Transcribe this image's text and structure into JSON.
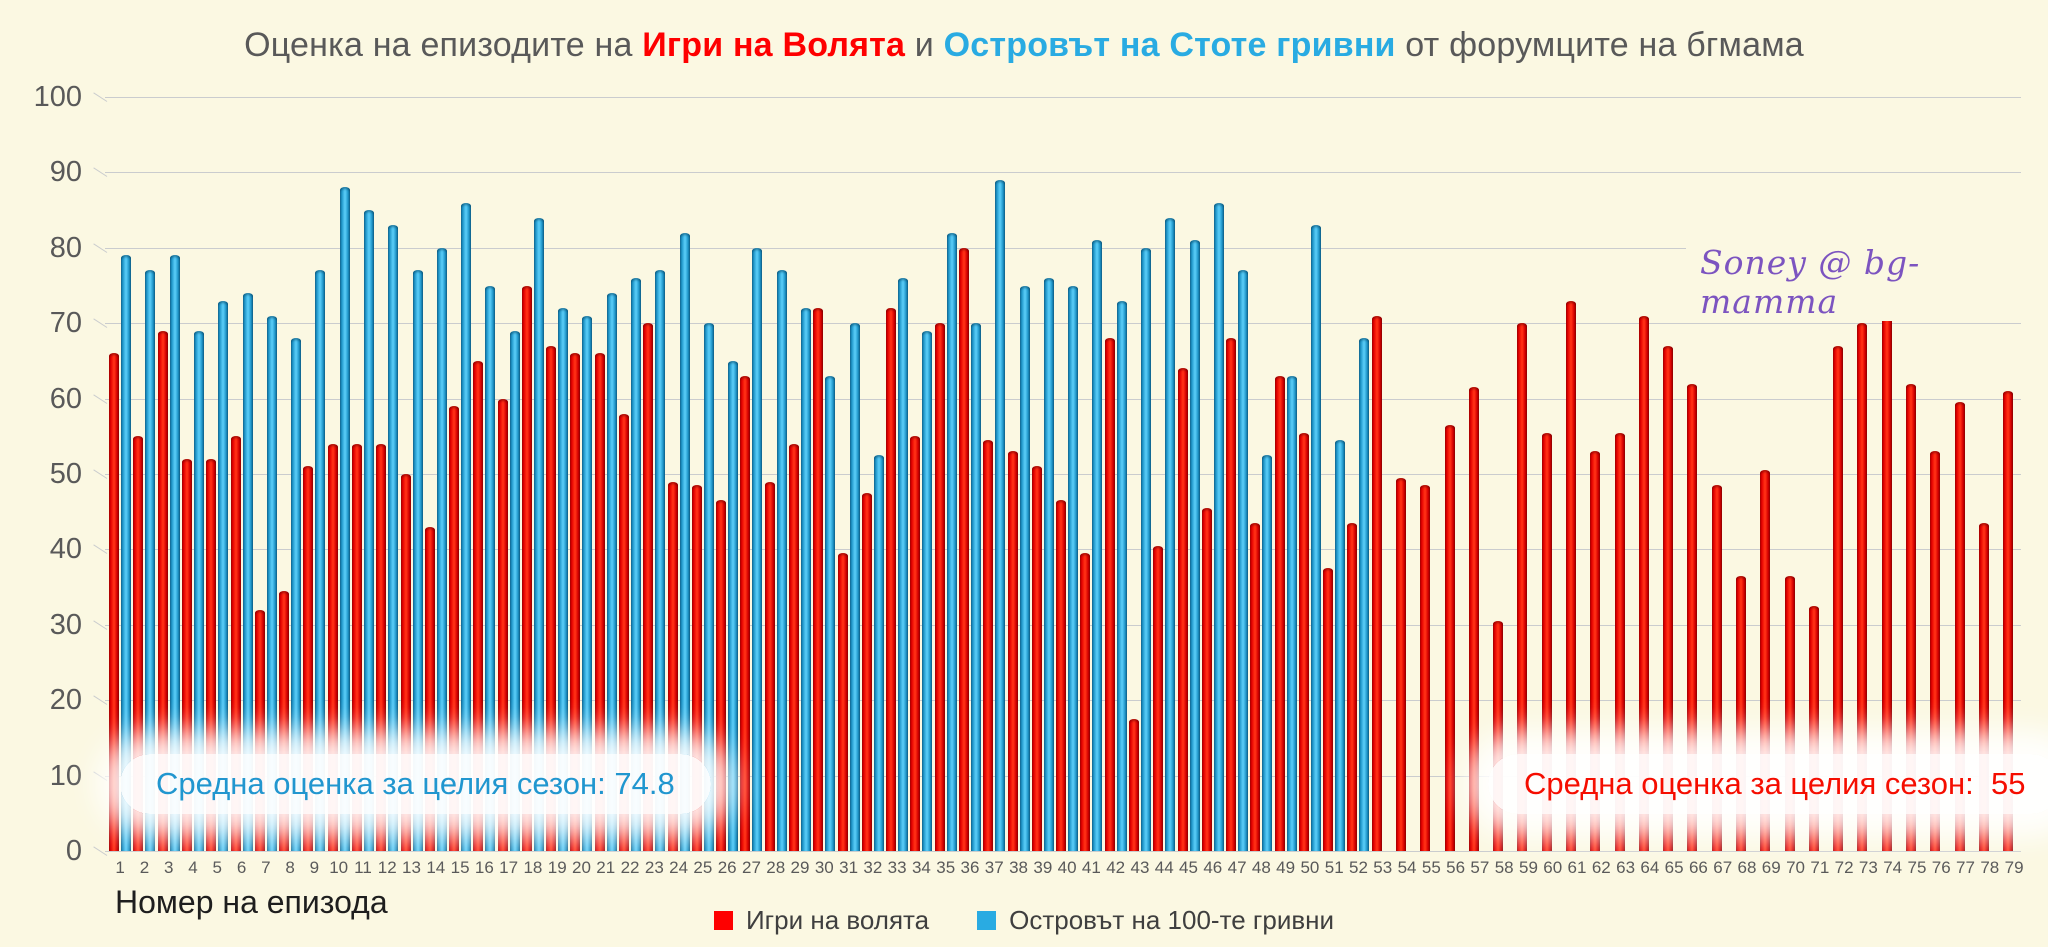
{
  "title": {
    "prefix": "Оценка на епизодите на ",
    "show1": "Игри на Волята",
    "mid": " и ",
    "show2": "Островът на Стоте гривни",
    "suffix": " от форумците на бгмама"
  },
  "watermark": "Soney @ bg-mamma",
  "annotations": {
    "island_avg": "Средна оценка за целия сезон: 74.8",
    "games_avg": "Средна оценка за целия сезон:  55"
  },
  "labels": {
    "x_axis": "Номер на епизода"
  },
  "legend": [
    {
      "label": "Игри на волята",
      "color": "#fe0000"
    },
    {
      "label": "Островът на 100-те гривни",
      "color": "#29abe2"
    }
  ],
  "colors": {
    "background": "#fbf8e2",
    "gridline": "#caccce",
    "axis_text": "#595959",
    "games_red": "#fe0000",
    "island_blue": "#29abe2",
    "caption_blue": "#2196cf",
    "caption_red": "#f50d00",
    "watermark_purple": "#7c54c0"
  },
  "chart_data": {
    "type": "bar",
    "title": "Оценка на епизодите на Игри на Волята и Островът на Стоте гривни от форумците на бгмама",
    "xlabel": "Номер на епизода",
    "ylabel": "",
    "ylim": [
      0,
      100
    ],
    "yticks": [
      100,
      90,
      80,
      70,
      60,
      50,
      40,
      30,
      20,
      10,
      0
    ],
    "grid": true,
    "legend_position": "bottom",
    "categories": [
      1,
      2,
      3,
      4,
      5,
      6,
      7,
      8,
      9,
      10,
      11,
      12,
      13,
      14,
      15,
      16,
      17,
      18,
      19,
      20,
      21,
      22,
      23,
      24,
      25,
      26,
      27,
      28,
      29,
      30,
      31,
      32,
      33,
      34,
      35,
      36,
      37,
      38,
      39,
      40,
      41,
      42,
      43,
      44,
      45,
      46,
      47,
      48,
      49,
      50,
      51,
      52,
      53,
      54,
      55,
      56,
      57,
      58,
      59,
      60,
      61,
      62,
      63,
      64,
      65,
      66,
      67,
      68,
      69,
      70,
      71,
      72,
      73,
      74,
      75,
      76,
      77,
      78,
      79
    ],
    "series": [
      {
        "name": "Игри на волята",
        "color": "#fe0000",
        "average": 55,
        "values": [
          66,
          55,
          69,
          52,
          52,
          55,
          32,
          34.5,
          51,
          54,
          54,
          54,
          50,
          43,
          59,
          65,
          60,
          75,
          67,
          66,
          66,
          58,
          70,
          49,
          48.5,
          46.5,
          63,
          49,
          54,
          72,
          39.5,
          47.5,
          72,
          55,
          70,
          80,
          54.5,
          53,
          51,
          46.5,
          39.5,
          68,
          17.5,
          40.5,
          64,
          45.5,
          68,
          43.5,
          63,
          55.5,
          37.5,
          43.5,
          71,
          49.5,
          48.5,
          56.5,
          61.5,
          30.5,
          70,
          55.5,
          73,
          53,
          55.5,
          71,
          67,
          62,
          48.5,
          36.5,
          50.5,
          36.5,
          32.5,
          67,
          70,
          72,
          62,
          53,
          59.5,
          43.5,
          61
        ]
      },
      {
        "name": "Островът на 100-те гривни",
        "color": "#29abe2",
        "average": 74.8,
        "values": [
          79,
          77,
          79,
          69,
          73,
          74,
          71,
          68,
          77,
          88,
          85,
          83,
          77,
          80,
          86,
          75,
          69,
          84,
          72,
          71,
          74,
          76,
          77,
          82,
          70,
          65,
          80,
          77,
          72,
          63,
          70,
          52.5,
          76,
          69,
          82,
          70,
          89,
          75,
          76,
          75,
          81,
          73,
          80,
          84,
          81,
          86,
          77,
          52.5,
          63,
          83,
          54.5,
          68,
          null,
          null,
          null,
          null,
          null,
          null,
          null,
          null,
          null,
          null,
          null,
          null,
          null,
          null,
          null,
          null,
          null,
          null,
          null,
          null,
          null,
          null,
          null,
          null,
          null,
          null,
          null
        ]
      }
    ]
  }
}
